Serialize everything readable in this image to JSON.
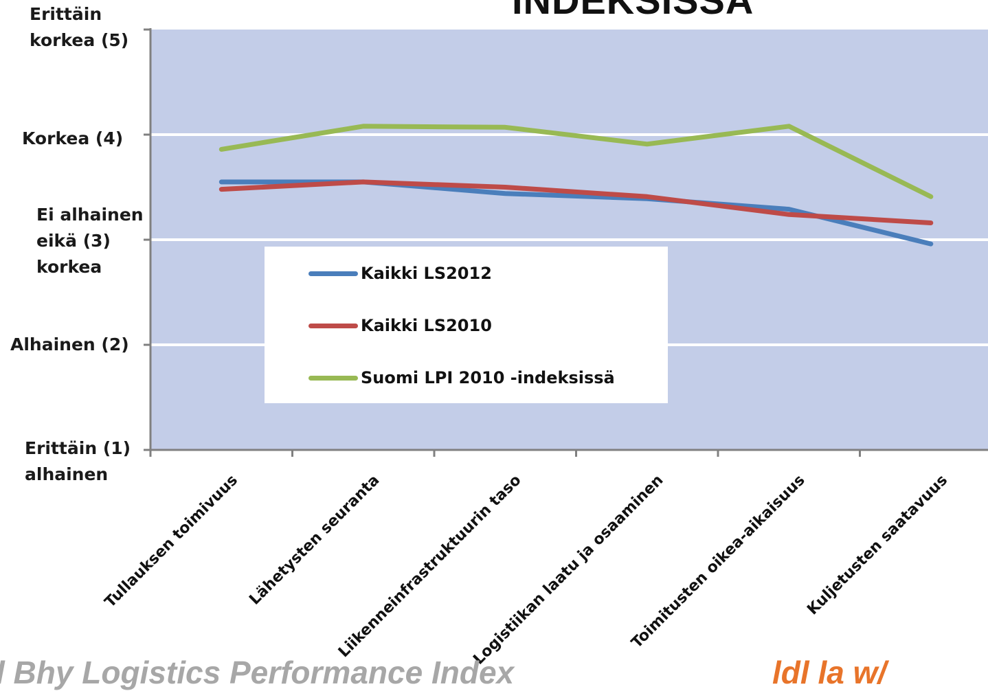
{
  "title_fragment": "INDEKSISSÄ",
  "footer": {
    "left": "l Bhy Logistics Performance Index",
    "right": "ldl   la  w/"
  },
  "colors": {
    "plot_bg": "#c3cde8",
    "grid": "#ffffff",
    "axis": "#808080"
  },
  "chart_data": {
    "type": "line",
    "title": "INDEKSISSÄ",
    "categories": [
      "Tullauksen toimivuus",
      "Lähetysten seuranta",
      "Liikenneinfrastruktuurin taso",
      "Logistiikan laatu ja osaaminen",
      "Toimitusten oikea-aikaisuus",
      "Kuljetusten saatavuus"
    ],
    "y_tick_labels": [
      {
        "value": 5,
        "text": "Erittäin\nkorkea (5)"
      },
      {
        "value": 4,
        "text": "Korkea (4)"
      },
      {
        "value": 3,
        "text": "Ei alhainen\neikä (3)\nkorkea"
      },
      {
        "value": 2,
        "text": "Alhainen (2)"
      },
      {
        "value": 1,
        "text": "Erittäin (1)\nalhainen"
      }
    ],
    "ylim": [
      1,
      5
    ],
    "grid": true,
    "legend_position": "center-left",
    "series": [
      {
        "name": "Kaikki LS2012",
        "color": "#4a7ebb",
        "values": [
          3.55,
          3.55,
          3.44,
          3.39,
          3.29,
          2.96
        ]
      },
      {
        "name": "Kaikki LS2010",
        "color": "#be4b48",
        "values": [
          3.48,
          3.55,
          3.5,
          3.41,
          3.24,
          3.16
        ]
      },
      {
        "name": "Suomi LPI 2010 -indeksissä",
        "color": "#98b954",
        "values": [
          3.86,
          4.08,
          4.07,
          3.91,
          4.08,
          3.41
        ]
      }
    ]
  }
}
